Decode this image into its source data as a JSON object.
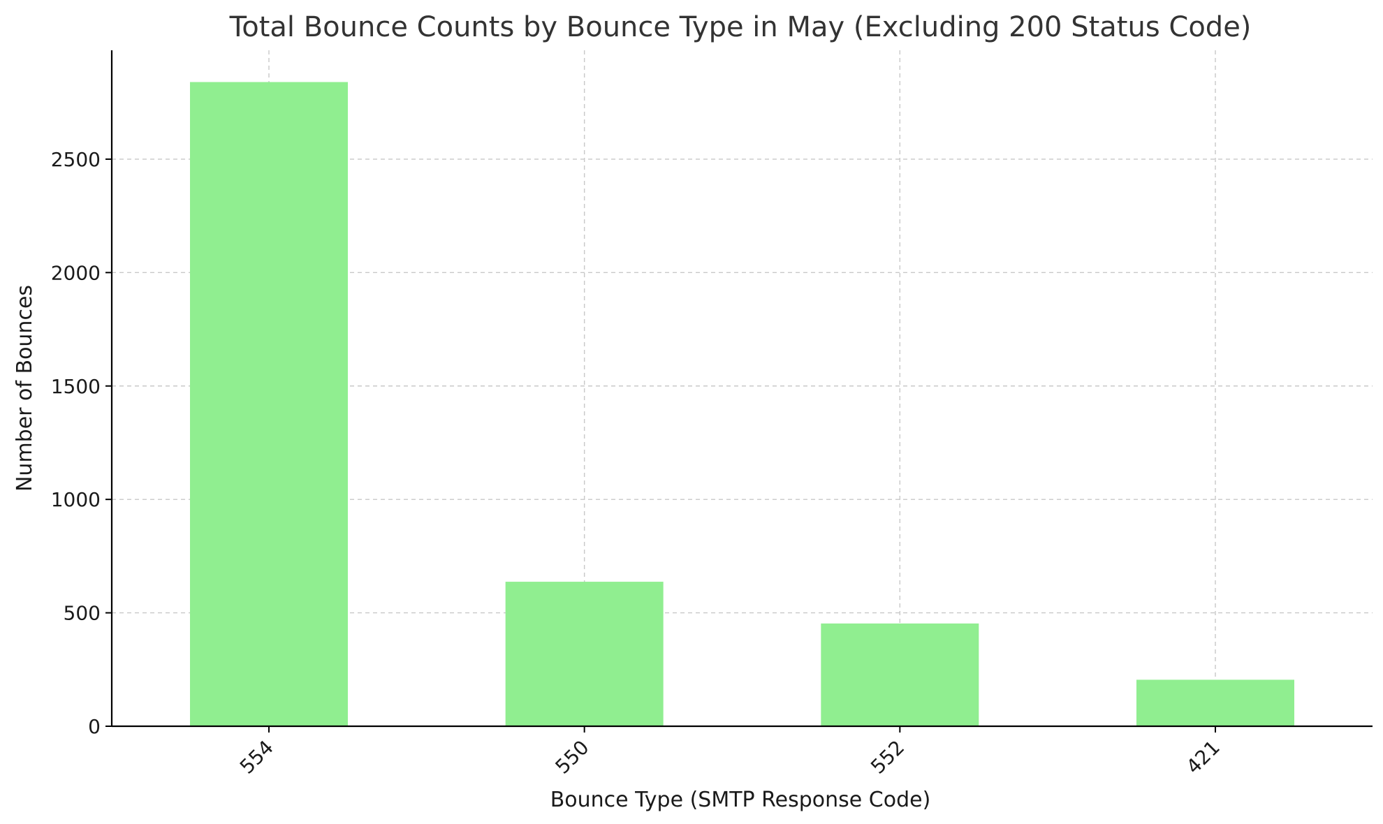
{
  "chart_data": {
    "type": "bar",
    "title": "Total Bounce Counts by Bounce Type in May (Excluding 200 Status Code)",
    "xlabel": "Bounce Type (SMTP Response Code)",
    "ylabel": "Number of Bounces",
    "categories": [
      "554",
      "550",
      "552",
      "421"
    ],
    "values": [
      2840,
      637,
      453,
      205
    ],
    "ylim": [
      0,
      2980
    ],
    "yticks": [
      0,
      500,
      1000,
      1500,
      2000,
      2500
    ],
    "grid": true,
    "bar_color": "#90ee90"
  }
}
